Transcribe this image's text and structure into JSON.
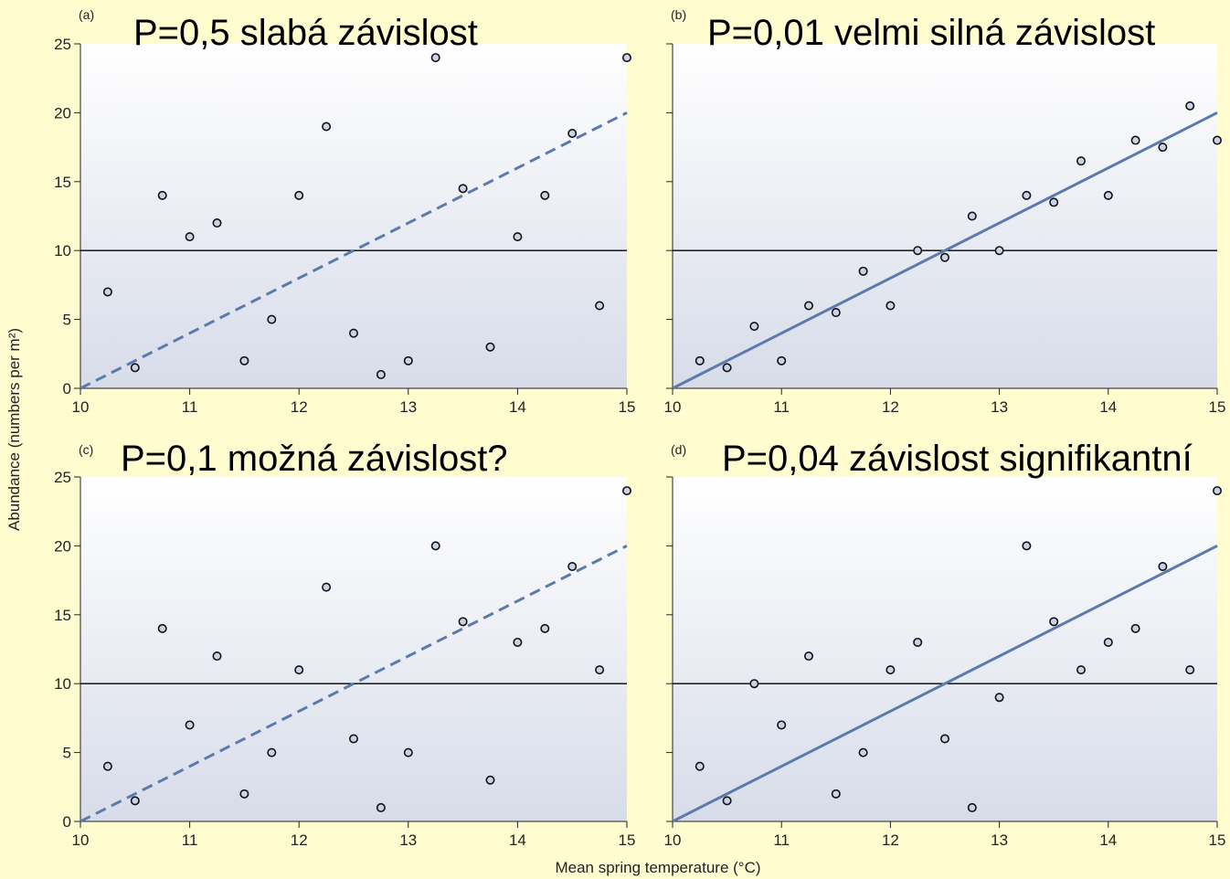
{
  "axes": {
    "ylabel": "Abundance (numbers per m²)",
    "xlabel": "Mean spring temperature (°C)",
    "xticks": [
      "10",
      "11",
      "12",
      "13",
      "14",
      "15"
    ],
    "yticks": [
      "0",
      "5",
      "10",
      "15",
      "20",
      "25"
    ]
  },
  "panels": [
    {
      "label": "(a)",
      "title": "P=0,5 slabá závislost"
    },
    {
      "label": "(b)",
      "title": "P=0,01 velmi silná závislost"
    },
    {
      "label": "(c)",
      "title": "P=0,1 možná závislost?"
    },
    {
      "label": "(d)",
      "title": "P=0,04 závislost signifikantní"
    }
  ],
  "colors": {
    "page_background": "#fffdd0",
    "plot_gradient_top": "#ffffff",
    "plot_gradient_bottom": "#d7dce9",
    "regression_line": "#5b7bad",
    "reference_line": "#000000",
    "marker_fill": "#c9d3e8"
  },
  "chart_data": [
    {
      "type": "scatter",
      "panel": "(a)",
      "title": "P=0,5 slabá závislost",
      "x": [
        10.25,
        10.5,
        10.75,
        11.0,
        11.25,
        11.5,
        11.75,
        12.0,
        12.25,
        12.5,
        12.75,
        13.0,
        13.25,
        13.5,
        13.75,
        14.0,
        14.25,
        14.5,
        14.75,
        15.0
      ],
      "y": [
        7,
        1.5,
        14,
        11,
        12,
        2,
        5,
        14,
        19,
        4,
        1,
        2,
        24,
        14.5,
        3,
        11,
        14,
        18.5,
        6,
        24
      ],
      "xlim": [
        10,
        15
      ],
      "ylim": [
        0,
        25
      ],
      "horizontal_line": 10,
      "fit_line": {
        "x": [
          10,
          15
        ],
        "y": [
          0,
          20
        ],
        "style": "dashed"
      }
    },
    {
      "type": "scatter",
      "panel": "(b)",
      "title": "P=0,01 velmi silná závislost",
      "x": [
        10.25,
        10.5,
        10.75,
        11.0,
        11.25,
        11.5,
        11.75,
        12.0,
        12.25,
        12.5,
        12.75,
        13.0,
        13.25,
        13.5,
        13.75,
        14.0,
        14.25,
        14.5,
        14.75,
        15.0
      ],
      "y": [
        2,
        1.5,
        4.5,
        2,
        6,
        5.5,
        8.5,
        6,
        10,
        9.5,
        12.5,
        10,
        14,
        13.5,
        16.5,
        14,
        18,
        17.5,
        20.5,
        18
      ],
      "xlim": [
        10,
        15
      ],
      "ylim": [
        0,
        25
      ],
      "horizontal_line": 10,
      "fit_line": {
        "x": [
          10,
          15
        ],
        "y": [
          0,
          20
        ],
        "style": "solid"
      }
    },
    {
      "type": "scatter",
      "panel": "(c)",
      "title": "P=0,1 možná závislost?",
      "x": [
        10.25,
        10.5,
        10.75,
        11.0,
        11.25,
        11.5,
        11.75,
        12.0,
        12.25,
        12.5,
        12.75,
        13.0,
        13.25,
        13.5,
        13.75,
        14.0,
        14.25,
        14.5,
        14.75,
        15.0
      ],
      "y": [
        4,
        1.5,
        14,
        7,
        12,
        2,
        5,
        11,
        17,
        6,
        1,
        5,
        20,
        14.5,
        3,
        13,
        14,
        18.5,
        11,
        24
      ],
      "xlim": [
        10,
        15
      ],
      "ylim": [
        0,
        25
      ],
      "horizontal_line": 10,
      "fit_line": {
        "x": [
          10,
          15
        ],
        "y": [
          0,
          20
        ],
        "style": "dashed"
      }
    },
    {
      "type": "scatter",
      "panel": "(d)",
      "title": "P=0,04 závislost signifikantní",
      "x": [
        10.25,
        10.5,
        10.75,
        11.0,
        11.25,
        11.5,
        11.75,
        12.0,
        12.25,
        12.5,
        12.75,
        13.0,
        13.25,
        13.5,
        13.75,
        14.0,
        14.25,
        14.5,
        14.75,
        15.0
      ],
      "y": [
        4,
        1.5,
        10,
        7,
        12,
        2,
        5,
        11,
        13,
        6,
        1,
        9,
        20,
        14.5,
        11,
        13,
        14,
        18.5,
        11,
        24
      ],
      "xlim": [
        10,
        15
      ],
      "ylim": [
        0,
        25
      ],
      "horizontal_line": 10,
      "fit_line": {
        "x": [
          10,
          15
        ],
        "y": [
          0,
          20
        ],
        "style": "solid"
      }
    }
  ]
}
